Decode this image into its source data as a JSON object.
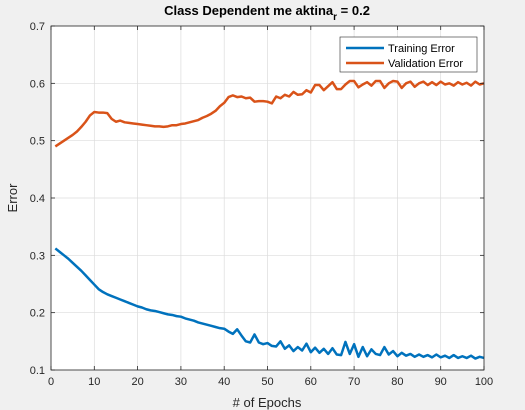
{
  "chart_data": {
    "type": "line",
    "title": "Class Dependent me aktina",
    "title_subscript": "r",
    "title_suffix": " = 0.2",
    "xlabel": "# of Epochs",
    "ylabel": "Error",
    "xlim": [
      0,
      100
    ],
    "ylim": [
      0.1,
      0.7
    ],
    "xticks": [
      "0",
      "10",
      "20",
      "30",
      "40",
      "50",
      "60",
      "70",
      "80",
      "90",
      "100"
    ],
    "yticks": [
      "0.1",
      "0.2",
      "0.3",
      "0.4",
      "0.5",
      "0.6",
      "0.7"
    ],
    "grid": true,
    "legend_position": "top-right",
    "series": [
      {
        "name": "Training Error",
        "color": "#0072bd",
        "x": [
          1,
          2,
          3,
          4,
          5,
          6,
          7,
          8,
          9,
          10,
          11,
          12,
          13,
          14,
          15,
          16,
          17,
          18,
          19,
          20,
          21,
          22,
          23,
          24,
          25,
          26,
          27,
          28,
          29,
          30,
          31,
          32,
          33,
          34,
          35,
          36,
          37,
          38,
          39,
          40,
          41,
          42,
          43,
          44,
          45,
          46,
          47,
          48,
          49,
          50,
          51,
          52,
          53,
          54,
          55,
          56,
          57,
          58,
          59,
          60,
          61,
          62,
          63,
          64,
          65,
          66,
          67,
          68,
          69,
          70,
          71,
          72,
          73,
          74,
          75,
          76,
          77,
          78,
          79,
          80,
          81,
          82,
          83,
          84,
          85,
          86,
          87,
          88,
          89,
          90,
          91,
          92,
          93,
          94,
          95,
          96,
          97,
          98,
          99,
          100
        ],
        "values": [
          0.312,
          0.306,
          0.3,
          0.294,
          0.287,
          0.28,
          0.273,
          0.265,
          0.257,
          0.249,
          0.241,
          0.236,
          0.232,
          0.229,
          0.226,
          0.223,
          0.22,
          0.217,
          0.214,
          0.211,
          0.209,
          0.206,
          0.204,
          0.203,
          0.201,
          0.199,
          0.197,
          0.196,
          0.194,
          0.193,
          0.19,
          0.188,
          0.186,
          0.183,
          0.181,
          0.179,
          0.177,
          0.175,
          0.173,
          0.172,
          0.167,
          0.163,
          0.171,
          0.16,
          0.15,
          0.148,
          0.162,
          0.148,
          0.145,
          0.147,
          0.142,
          0.141,
          0.15,
          0.137,
          0.143,
          0.133,
          0.14,
          0.134,
          0.146,
          0.131,
          0.139,
          0.13,
          0.137,
          0.128,
          0.138,
          0.127,
          0.126,
          0.149,
          0.128,
          0.145,
          0.123,
          0.14,
          0.124,
          0.136,
          0.128,
          0.126,
          0.14,
          0.127,
          0.133,
          0.124,
          0.13,
          0.125,
          0.128,
          0.123,
          0.127,
          0.123,
          0.126,
          0.122,
          0.127,
          0.122,
          0.125,
          0.121,
          0.126,
          0.121,
          0.124,
          0.121,
          0.125,
          0.12,
          0.123,
          0.121
        ]
      },
      {
        "name": "Validation Error",
        "color": "#d95319",
        "x": [
          1,
          2,
          3,
          4,
          5,
          6,
          7,
          8,
          9,
          10,
          11,
          12,
          13,
          14,
          15,
          16,
          17,
          18,
          19,
          20,
          21,
          22,
          23,
          24,
          25,
          26,
          27,
          28,
          29,
          30,
          31,
          32,
          33,
          34,
          35,
          36,
          37,
          38,
          39,
          40,
          41,
          42,
          43,
          44,
          45,
          46,
          47,
          48,
          49,
          50,
          51,
          52,
          53,
          54,
          55,
          56,
          57,
          58,
          59,
          60,
          61,
          62,
          63,
          64,
          65,
          66,
          67,
          68,
          69,
          70,
          71,
          72,
          73,
          74,
          75,
          76,
          77,
          78,
          79,
          80,
          81,
          82,
          83,
          84,
          85,
          86,
          87,
          88,
          89,
          90,
          91,
          92,
          93,
          94,
          95,
          96,
          97,
          98,
          99,
          100
        ],
        "values": [
          0.49,
          0.495,
          0.5,
          0.505,
          0.51,
          0.516,
          0.524,
          0.533,
          0.544,
          0.55,
          0.549,
          0.549,
          0.548,
          0.538,
          0.533,
          0.535,
          0.532,
          0.531,
          0.53,
          0.529,
          0.528,
          0.527,
          0.526,
          0.525,
          0.525,
          0.524,
          0.525,
          0.527,
          0.527,
          0.529,
          0.53,
          0.532,
          0.534,
          0.536,
          0.54,
          0.543,
          0.547,
          0.552,
          0.56,
          0.566,
          0.576,
          0.579,
          0.576,
          0.577,
          0.574,
          0.575,
          0.568,
          0.569,
          0.569,
          0.568,
          0.565,
          0.577,
          0.574,
          0.58,
          0.577,
          0.585,
          0.58,
          0.581,
          0.588,
          0.584,
          0.597,
          0.597,
          0.588,
          0.595,
          0.602,
          0.59,
          0.59,
          0.598,
          0.604,
          0.604,
          0.593,
          0.598,
          0.602,
          0.596,
          0.604,
          0.604,
          0.592,
          0.6,
          0.604,
          0.603,
          0.592,
          0.6,
          0.603,
          0.594,
          0.6,
          0.603,
          0.597,
          0.602,
          0.597,
          0.603,
          0.598,
          0.6,
          0.596,
          0.602,
          0.598,
          0.601,
          0.596,
          0.603,
          0.598,
          0.6
        ]
      }
    ]
  }
}
